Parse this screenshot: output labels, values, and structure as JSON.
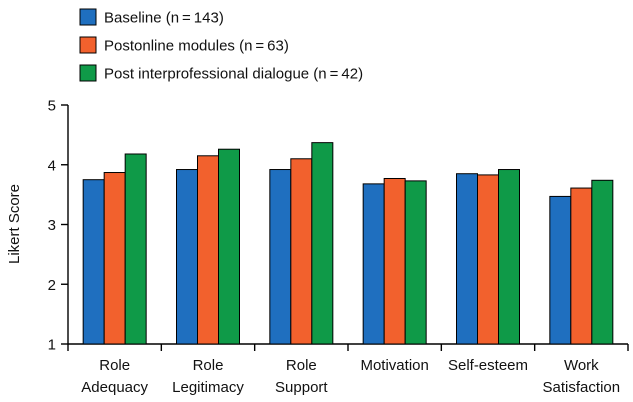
{
  "chart_data": {
    "type": "bar",
    "title": "",
    "xlabel": "",
    "ylabel": "Likert Score",
    "ylim": [
      1,
      5
    ],
    "yticks": [
      1,
      2,
      3,
      4,
      5
    ],
    "grid": false,
    "legend_position": "top-left",
    "categories": [
      [
        "Role",
        "Adequacy"
      ],
      [
        "Role",
        "Legitimacy"
      ],
      [
        "Role",
        "Support"
      ],
      [
        "Motivation"
      ],
      [
        "Self-esteem"
      ],
      [
        "Work",
        "Satisfaction"
      ]
    ],
    "series": [
      {
        "name": "Baseline (n = 143)",
        "color": "#1f6fbf",
        "values": [
          3.75,
          3.92,
          3.92,
          3.68,
          3.85,
          3.47
        ]
      },
      {
        "name": "Postonline modules (n = 63)",
        "color": "#f2612d",
        "values": [
          3.87,
          4.15,
          4.1,
          3.77,
          3.83,
          3.61
        ]
      },
      {
        "name": "Post interprofessional dialogue (n = 42)",
        "color": "#0f9a48",
        "values": [
          4.18,
          4.26,
          4.37,
          3.73,
          3.92,
          3.74
        ]
      }
    ]
  }
}
